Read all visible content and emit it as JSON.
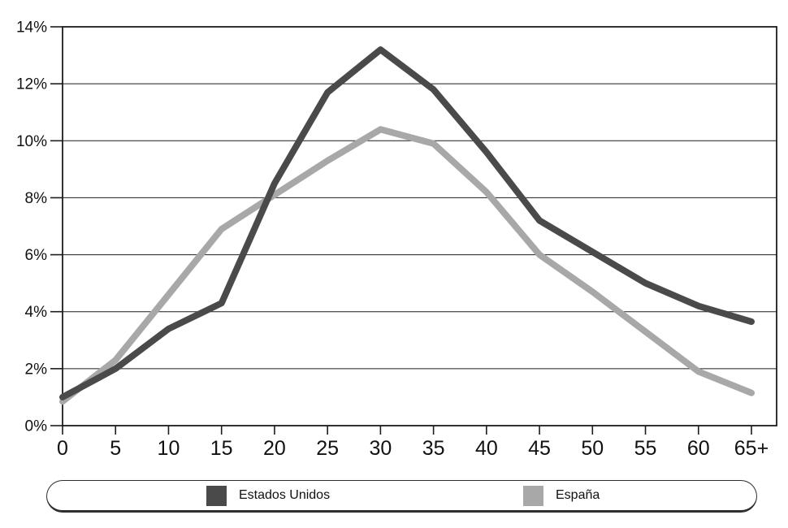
{
  "chart_data": {
    "type": "line",
    "title": "",
    "xlabel": "",
    "ylabel": "",
    "categories": [
      "0",
      "5",
      "10",
      "15",
      "20",
      "25",
      "30",
      "35",
      "40",
      "45",
      "50",
      "55",
      "60",
      "65+"
    ],
    "y_axis": {
      "min": 0,
      "max": 14,
      "step": 2,
      "tick_labels": [
        "0%",
        "2%",
        "4%",
        "6%",
        "8%",
        "10%",
        "12%",
        "14%"
      ]
    },
    "grid": "horizontal",
    "legend_position": "bottom",
    "series": [
      {
        "name": "Estados Unidos",
        "color": "#4a4a4a",
        "values": [
          1.0,
          2.0,
          3.4,
          4.3,
          8.5,
          11.7,
          13.2,
          11.8,
          9.6,
          7.2,
          6.1,
          5.0,
          4.2,
          3.65
        ]
      },
      {
        "name": "España",
        "color": "#a8a8a8",
        "values": [
          0.85,
          2.3,
          4.6,
          6.9,
          8.1,
          9.3,
          10.4,
          9.9,
          8.2,
          6.0,
          4.7,
          3.3,
          1.9,
          1.15
        ]
      }
    ]
  },
  "colors": {
    "axis": "#1c1c1c",
    "background": "#ffffff"
  }
}
